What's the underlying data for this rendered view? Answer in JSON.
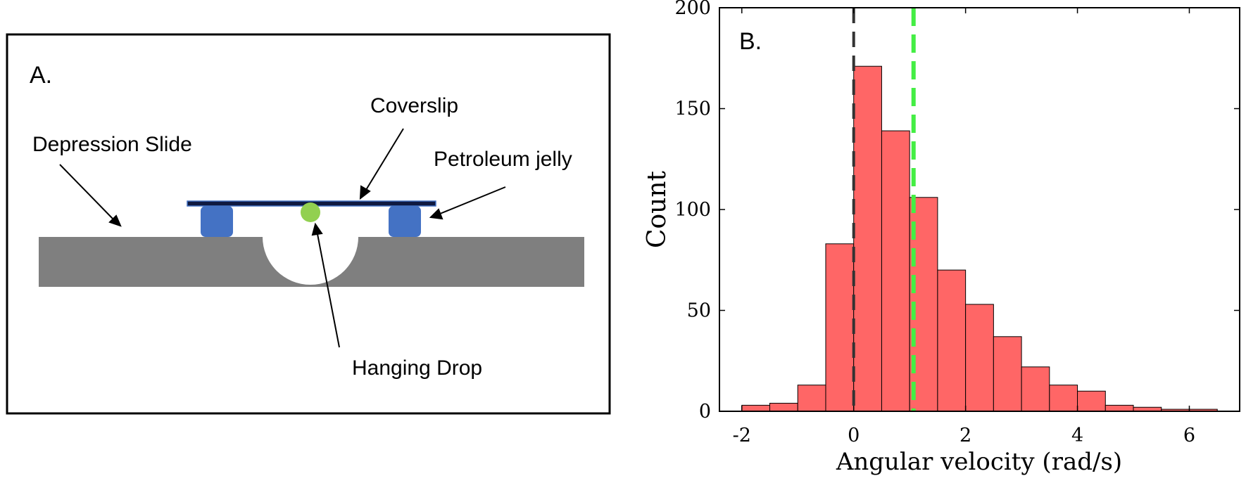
{
  "panel_a": {
    "label": "A.",
    "callouts": {
      "coverslip": "Coverslip",
      "depression_slide": "Depression Slide",
      "petroleum_jelly": "Petroleum jelly",
      "hanging_drop": "Hanging Drop"
    },
    "colors": {
      "slide": "#7f7f7f",
      "jelly": "#4472c4",
      "drop": "#92d050",
      "coverslip": "#0f1940"
    }
  },
  "panel_b": {
    "label": "B."
  },
  "chart_data": {
    "type": "bar",
    "title": "",
    "xlabel": "Angular velocity (rad/s)",
    "ylabel": "Count",
    "xlim": [
      -2.4,
      6.9
    ],
    "ylim": [
      0,
      200
    ],
    "xticks": [
      -2,
      0,
      2,
      4,
      6
    ],
    "yticks": [
      0,
      50,
      100,
      150,
      200
    ],
    "bin_edges": [
      -2.0,
      -1.5,
      -1.0,
      -0.5,
      0.0,
      0.5,
      1.0,
      1.5,
      2.0,
      2.5,
      3.0,
      3.5,
      4.0,
      4.5,
      5.0,
      5.5,
      6.0,
      6.5
    ],
    "values": [
      3,
      4,
      13,
      83,
      171,
      139,
      106,
      70,
      53,
      37,
      22,
      13,
      10,
      3,
      2,
      1,
      1
    ],
    "bar_color": "#ff6666",
    "vlines": [
      {
        "x": 0.0,
        "color": "#333333",
        "style": "dashed"
      },
      {
        "x": 1.07,
        "color": "#44ee44",
        "style": "dashed"
      }
    ],
    "grid": false
  }
}
